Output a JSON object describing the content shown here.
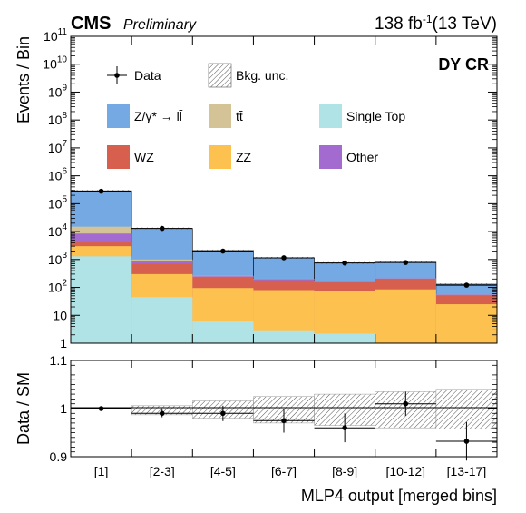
{
  "header": {
    "experiment": "CMS",
    "status": "Preliminary",
    "lumi_value": "138 fb",
    "lumi_exp": "-1",
    "energy": "(13 TeV)"
  },
  "region_label": "DY CR",
  "colors": {
    "dy": "#74a9e3",
    "tt": "#d3c396",
    "singletop": "#b0e3e6",
    "wz": "#d6604d",
    "zz": "#fdc150",
    "other": "#a36ad0",
    "band": "#888888",
    "region": "#777777"
  },
  "legend": [
    {
      "key": "data",
      "label": "Data",
      "kind": "marker"
    },
    {
      "key": "unc",
      "label": "Bkg. unc.",
      "kind": "hatch"
    },
    {
      "key": "dy",
      "label": "Z/γ* → ll̄",
      "kind": "box"
    },
    {
      "key": "tt",
      "label": "tt̄",
      "kind": "box"
    },
    {
      "key": "singletop",
      "label": "Single Top",
      "kind": "box"
    },
    {
      "key": "wz",
      "label": "WZ",
      "kind": "box"
    },
    {
      "key": "zz",
      "label": "ZZ",
      "kind": "box"
    },
    {
      "key": "other",
      "label": "Other",
      "kind": "box"
    }
  ],
  "chart_data": [
    {
      "type": "bar",
      "stacked": true,
      "ylabel": "Events / Bin",
      "ylog": true,
      "ylim": [
        1,
        100000000000
      ],
      "yticks": [
        {
          "v": 1,
          "t": "1"
        },
        {
          "v": 10,
          "t": "10"
        },
        {
          "v": 100,
          "t": "10",
          "e": "2"
        },
        {
          "v": 1000,
          "t": "10",
          "e": "3"
        },
        {
          "v": 10000,
          "t": "10",
          "e": "4"
        },
        {
          "v": 100000,
          "t": "10",
          "e": "5"
        },
        {
          "v": 1000000,
          "t": "10",
          "e": "6"
        },
        {
          "v": 10000000,
          "t": "10",
          "e": "7"
        },
        {
          "v": 100000000,
          "t": "10",
          "e": "8"
        },
        {
          "v": 1000000000,
          "t": "10",
          "e": "9"
        },
        {
          "v": 10000000000,
          "t": "10",
          "e": "10"
        },
        {
          "v": 100000000000,
          "t": "10",
          "e": "11"
        }
      ],
      "categories": [
        "[1]",
        "[2-3]",
        "[4-5]",
        "[6-7]",
        "[8-9]",
        "[10-12]",
        "[13-17]"
      ],
      "stack": [
        {
          "key": "singletop",
          "cumulative_top": [
            1300,
            45,
            6,
            2.7,
            2.2,
            1,
            1
          ]
        },
        {
          "key": "zz",
          "cumulative_top": [
            3000,
            300,
            95,
            80,
            75,
            85,
            25
          ]
        },
        {
          "key": "wz",
          "cumulative_top": [
            4200,
            700,
            230,
            180,
            150,
            200,
            50
          ]
        },
        {
          "key": "other",
          "cumulative_top": [
            8500,
            900,
            250,
            200,
            160,
            210,
            55
          ]
        },
        {
          "key": "tt",
          "cumulative_top": [
            15000,
            1000,
            260,
            205,
            165,
            212,
            56
          ]
        },
        {
          "key": "dy",
          "cumulative_top": [
            290000,
            13000,
            2100,
            1150,
            750,
            800,
            130
          ]
        }
      ],
      "data": {
        "y": [
          280000,
          13000,
          2000,
          1150,
          750,
          780,
          120
        ],
        "y_err_up": [
          0,
          0,
          0,
          0,
          0,
          0,
          0
        ],
        "y_err_down": [
          0,
          0,
          0,
          0,
          0,
          0,
          0
        ]
      }
    },
    {
      "type": "scatter",
      "ylabel": "Data / SM",
      "xlabel": "MLP4 output [merged bins]",
      "ylim": [
        0.9,
        1.1
      ],
      "yticks": [
        {
          "v": 0.9,
          "t": "0.9"
        },
        {
          "v": 1.0,
          "t": "1"
        },
        {
          "v": 1.1,
          "t": "1.1"
        }
      ],
      "categories": [
        "[1]",
        "[2-3]",
        "[4-5]",
        "[6-7]",
        "[8-9]",
        "[10-12]",
        "[13-17]"
      ],
      "ratio": {
        "y": [
          1.0,
          0.99,
          0.99,
          0.975,
          0.96,
          1.01,
          0.932
        ],
        "err": [
          0.002,
          0.008,
          0.016,
          0.025,
          0.03,
          0.025,
          0.04
        ]
      },
      "band": {
        "lo": [
          0.999,
          0.987,
          0.98,
          0.97,
          0.965,
          0.96,
          0.958
        ],
        "hi": [
          1.001,
          1.006,
          1.016,
          1.025,
          1.03,
          1.035,
          1.04
        ]
      }
    }
  ]
}
